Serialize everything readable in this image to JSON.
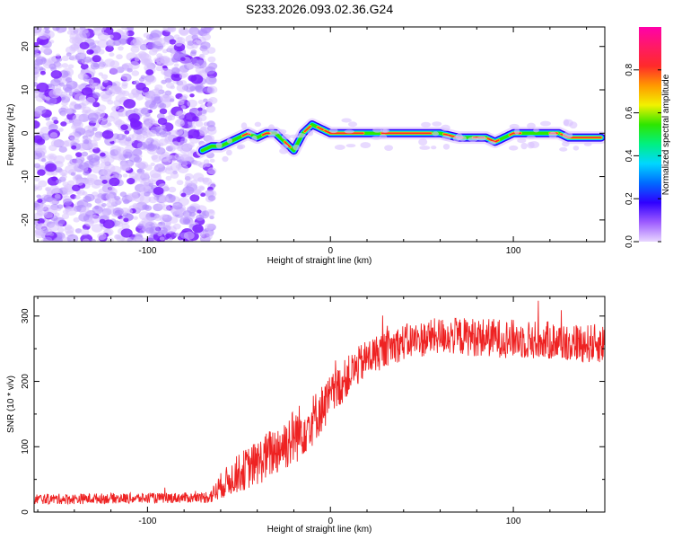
{
  "title": "S233.2026.093.02.36.G24",
  "colors": {
    "snr_line": "#ee2222",
    "axis": "#000000",
    "scatter_noise": "#7a1fff",
    "scatter_pale": "#d9c2ff"
  },
  "chart_data": [
    {
      "type": "heatmap",
      "title": "S233.2026.093.02.36.G24",
      "xlabel": "Height of straight line (km)",
      "ylabel": "Frequency (Hz)",
      "xlim": [
        -162,
        150
      ],
      "ylim": [
        -25,
        24.5
      ],
      "xticks": [
        -100,
        0,
        100
      ],
      "yticks": [
        -20,
        -10,
        0,
        10,
        20
      ],
      "colorbar": {
        "label": "Normalized spectral amplitude",
        "range": [
          0,
          1
        ],
        "ticks": [
          0.0,
          0.2,
          0.4,
          0.6,
          0.8
        ],
        "colormap": [
          "#e8d6ff",
          "#9d5bff",
          "#2f00ff",
          "#006bff",
          "#00d7ff",
          "#00f080",
          "#2ee600",
          "#f2f200",
          "#ff9900",
          "#ff2a2a",
          "#ff1a66",
          "#ff00aa"
        ]
      },
      "noise_region_x": [
        -162,
        -70
      ],
      "ridge": {
        "x": [
          -70,
          -65,
          -60,
          -55,
          -50,
          -45,
          -40,
          -35,
          -30,
          -25,
          -20,
          -15,
          -10,
          -5,
          0,
          10,
          20,
          30,
          40,
          50,
          60,
          70,
          75,
          80,
          85,
          90,
          95,
          100,
          110,
          120,
          125,
          130,
          140,
          148
        ],
        "freq": [
          -4,
          -3,
          -3,
          -2,
          -1,
          0,
          -1,
          0,
          0,
          -2,
          -4,
          0,
          2,
          1,
          0,
          0,
          0,
          0,
          0,
          0,
          0,
          -1,
          -1,
          -1,
          -1,
          -2,
          -1,
          0,
          0,
          0,
          0,
          -1,
          -1,
          -1
        ]
      }
    },
    {
      "type": "line",
      "xlabel": "Height of straight line (km)",
      "ylabel": "SNR (10 * v/v)",
      "xlim": [
        -162,
        150
      ],
      "ylim": [
        0,
        330
      ],
      "xticks": [
        -100,
        0,
        100
      ],
      "yticks": [
        0,
        100,
        200,
        300
      ],
      "series": [
        {
          "name": "SNR",
          "x": [
            -162,
            -140,
            -120,
            -100,
            -80,
            -70,
            -65,
            -60,
            -50,
            -40,
            -30,
            -20,
            -10,
            0,
            10,
            20,
            30,
            40,
            50,
            60,
            80,
            100,
            120,
            140,
            150
          ],
          "mean": [
            20,
            20,
            21,
            21,
            22,
            22,
            25,
            40,
            60,
            75,
            95,
            115,
            140,
            175,
            210,
            235,
            250,
            260,
            265,
            270,
            268,
            265,
            262,
            258,
            258
          ],
          "noise": [
            8,
            8,
            8,
            8,
            8,
            8,
            12,
            20,
            30,
            35,
            40,
            45,
            40,
            35,
            30,
            30,
            28,
            28,
            28,
            28,
            30,
            30,
            30,
            30,
            30
          ]
        }
      ]
    }
  ]
}
